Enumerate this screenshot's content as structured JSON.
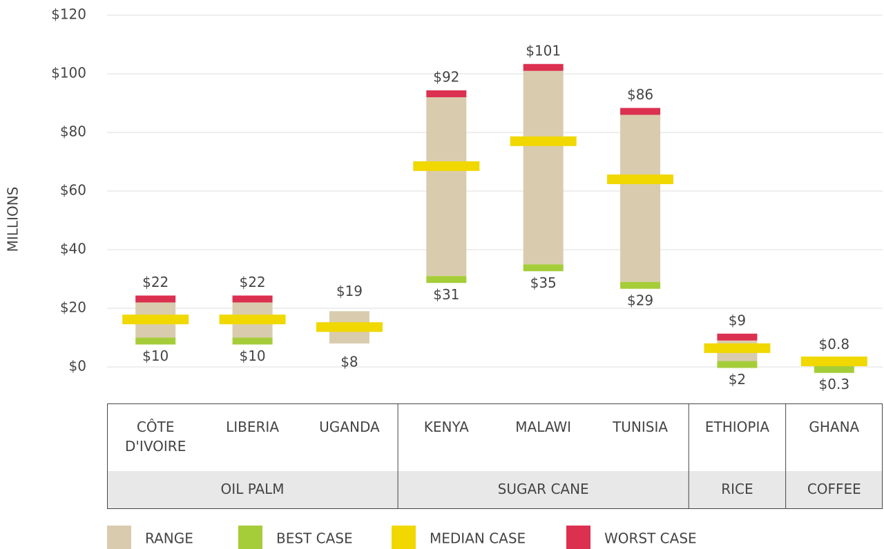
{
  "chart_data": {
    "type": "range",
    "y_label": "MILLIONS",
    "categories": [
      "CÔTE D'IVOIRE",
      "LIBERIA",
      "UGANDA",
      "KENYA",
      "MALAWI",
      "TUNISIA",
      "ETHIOPIA",
      "GHANA"
    ],
    "category_groups": [
      "OIL PALM",
      "OIL PALM",
      "OIL PALM",
      "SUGAR CANE",
      "SUGAR CANE",
      "SUGAR CANE",
      "RICE",
      "COFFEE"
    ],
    "series": [
      {
        "name": "RANGE",
        "color": "#d9ccae",
        "low": [
          10,
          10,
          8,
          31,
          35,
          29,
          2,
          0.3
        ],
        "high": [
          22,
          22,
          19,
          92,
          101,
          86,
          9,
          0.8
        ],
        "low_labels": [
          "$10",
          "$10",
          "$8",
          "$31",
          "$35",
          "$29",
          "$2",
          "$0.3"
        ],
        "high_labels": [
          "$22",
          "$22",
          "$19",
          "$92",
          "$101",
          "$86",
          "$9",
          "$0.8"
        ]
      },
      {
        "name": "BEST CASE",
        "color": "#a5cd39",
        "values": [
          10,
          10,
          null,
          31,
          35,
          29,
          2,
          0.3
        ]
      },
      {
        "name": "MEDIAN CASE",
        "color": "#f0d800",
        "values": [
          16.2,
          16.2,
          13.6,
          68.5,
          77,
          64,
          6.4,
          1.9
        ]
      },
      {
        "name": "WORST CASE",
        "color": "#dc3050",
        "values": [
          22,
          22,
          null,
          92,
          101,
          86,
          9,
          0.8
        ]
      }
    ],
    "ylim": [
      0,
      120
    ],
    "yticks": [
      {
        "value": 0,
        "label": "$0"
      },
      {
        "value": 20,
        "label": "$20"
      },
      {
        "value": 40,
        "label": "$40"
      },
      {
        "value": 60,
        "label": "$60"
      },
      {
        "value": 80,
        "label": "$80"
      },
      {
        "value": 100,
        "label": "$100"
      },
      {
        "value": 120,
        "label": "$120"
      }
    ],
    "grid": true
  }
}
